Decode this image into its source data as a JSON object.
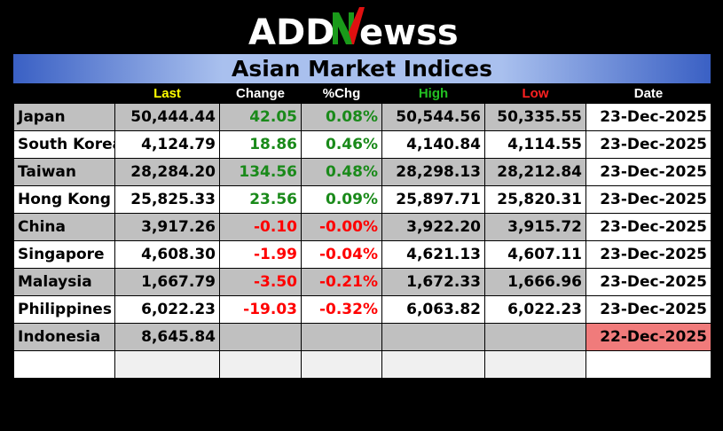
{
  "brand": {
    "pre": "ADD",
    "mid": "N",
    "post": "ewss",
    "accent": "#1a9a1a",
    "accent2": "#e01010"
  },
  "title": "Asian Market Indices",
  "columns": [
    {
      "label": "",
      "color": "#000000"
    },
    {
      "label": "Last",
      "color": "#ffff00"
    },
    {
      "label": "Change",
      "color": "#ffffff"
    },
    {
      "label": "%Chg",
      "color": "#ffffff"
    },
    {
      "label": "High",
      "color": "#22c022"
    },
    {
      "label": "Low",
      "color": "#ff2020"
    },
    {
      "label": "Date",
      "color": "#ffffff"
    }
  ],
  "rows": [
    {
      "name": "Japan",
      "last": "50,444.44",
      "change": "42.05",
      "pct": "0.08%",
      "high": "50,544.56",
      "low": "50,335.55",
      "date": "23-Dec-2025",
      "dir": "up"
    },
    {
      "name": "South Korea",
      "last": "4,124.79",
      "change": "18.86",
      "pct": "0.46%",
      "high": "4,140.84",
      "low": "4,114.55",
      "date": "23-Dec-2025",
      "dir": "up"
    },
    {
      "name": "Taiwan",
      "last": "28,284.20",
      "change": "134.56",
      "pct": "0.48%",
      "high": "28,298.13",
      "low": "28,212.84",
      "date": "23-Dec-2025",
      "dir": "up"
    },
    {
      "name": "Hong Kong",
      "last": "25,825.33",
      "change": "23.56",
      "pct": "0.09%",
      "high": "25,897.71",
      "low": "25,820.31",
      "date": "23-Dec-2025",
      "dir": "up"
    },
    {
      "name": "China",
      "last": "3,917.26",
      "change": "-0.10",
      "pct": "-0.00%",
      "high": "3,922.20",
      "low": "3,915.72",
      "date": "23-Dec-2025",
      "dir": "down"
    },
    {
      "name": "Singapore",
      "last": "4,608.30",
      "change": "-1.99",
      "pct": "-0.04%",
      "high": "4,621.13",
      "low": "4,607.11",
      "date": "23-Dec-2025",
      "dir": "down"
    },
    {
      "name": "Malaysia",
      "last": "1,667.79",
      "change": "-3.50",
      "pct": "-0.21%",
      "high": "1,672.33",
      "low": "1,666.96",
      "date": "23-Dec-2025",
      "dir": "down"
    },
    {
      "name": "Philippines",
      "last": "6,022.23",
      "change": "-19.03",
      "pct": "-0.32%",
      "high": "6,063.82",
      "low": "6,022.23",
      "date": "23-Dec-2025",
      "dir": "down"
    },
    {
      "name": "Indonesia",
      "last": "8,645.84",
      "change": "",
      "pct": "",
      "high": "",
      "low": "",
      "date": "22-Dec-2025",
      "dir": "flat",
      "stale": true
    }
  ]
}
